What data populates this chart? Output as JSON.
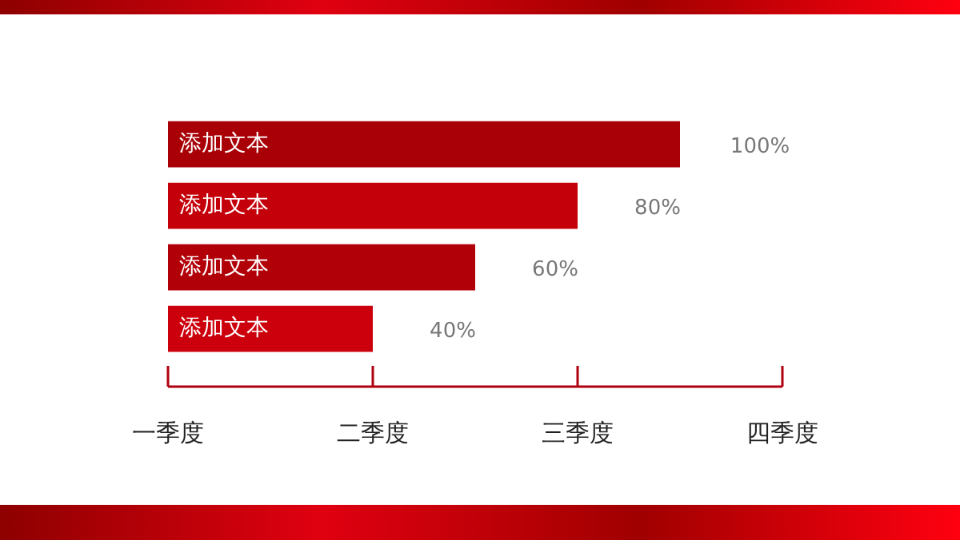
{
  "chart_data": {
    "type": "bar",
    "orientation": "horizontal",
    "categories": [
      "添加文本",
      "添加文本",
      "添加文本",
      "添加文本"
    ],
    "values": [
      100,
      80,
      60,
      40
    ],
    "colors": [
      "#a80006",
      "#c4000a",
      "#b20008",
      "#cc000c"
    ],
    "value_labels": [
      "100%",
      "80%",
      "60%",
      "40%"
    ],
    "xlim": [
      0,
      120
    ],
    "annotations": [
      "一季度",
      "二季度",
      "三季度",
      "四季度"
    ],
    "legend": false
  }
}
